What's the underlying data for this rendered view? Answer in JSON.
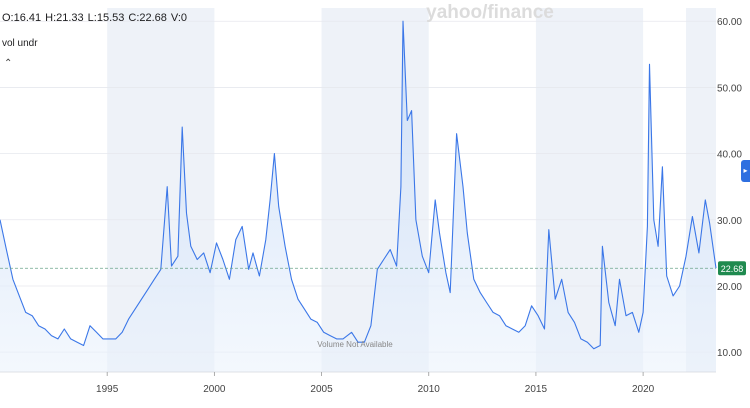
{
  "ohlc": {
    "open": "O:16.41",
    "high": "H:21.33",
    "low": "L:15.53",
    "close": "C:22.68",
    "volume": "V:0"
  },
  "study_label": "vol undr",
  "collapse_icon": "chevron-up-icon",
  "watermark": "yahoo/finance",
  "volume_note": "Volume Not Available",
  "current_price_label": "22.68",
  "colors": {
    "line": "#3b77e8",
    "area_top": "#c9dcf7",
    "grid": "#e6e8ee",
    "band": "#eef2f8",
    "tag": "#1f8a4f"
  },
  "chart_data": {
    "type": "area",
    "y_ticks": [
      "60.00",
      "50.00",
      "40.00",
      "30.00",
      "20.00",
      "10.00"
    ],
    "x_ticks": [
      "1995",
      "2000",
      "2005",
      "2010",
      "2015",
      "2020"
    ],
    "ylim": [
      7,
      62
    ],
    "xlim": [
      1990.0,
      2023.4
    ],
    "current_value": 22.68,
    "x": [
      1990.0,
      1990.3,
      1990.6,
      1990.9,
      1991.2,
      1991.5,
      1991.8,
      1992.1,
      1992.4,
      1992.7,
      1993.0,
      1993.3,
      1993.6,
      1993.9,
      1994.2,
      1994.5,
      1994.8,
      1995.1,
      1995.4,
      1995.7,
      1996.0,
      1996.3,
      1996.6,
      1996.9,
      1997.2,
      1997.5,
      1997.8,
      1998.0,
      1998.3,
      1998.5,
      1998.7,
      1998.9,
      1999.2,
      1999.5,
      1999.8,
      2000.1,
      2000.4,
      2000.7,
      2001.0,
      2001.3,
      2001.6,
      2001.8,
      2002.1,
      2002.4,
      2002.6,
      2002.8,
      2003.0,
      2003.3,
      2003.6,
      2003.9,
      2004.2,
      2004.5,
      2004.8,
      2005.1,
      2005.4,
      2005.7,
      2006.0,
      2006.4,
      2006.7,
      2007.0,
      2007.3,
      2007.6,
      2007.9,
      2008.2,
      2008.5,
      2008.7,
      2008.8,
      2009.0,
      2009.2,
      2009.4,
      2009.7,
      2010.0,
      2010.3,
      2010.5,
      2010.8,
      2011.0,
      2011.3,
      2011.6,
      2011.8,
      2012.1,
      2012.4,
      2012.7,
      2013.0,
      2013.3,
      2013.6,
      2013.9,
      2014.2,
      2014.5,
      2014.8,
      2015.1,
      2015.4,
      2015.6,
      2015.9,
      2016.2,
      2016.5,
      2016.8,
      2017.1,
      2017.4,
      2017.7,
      2018.0,
      2018.1,
      2018.4,
      2018.7,
      2018.9,
      2019.2,
      2019.5,
      2019.8,
      2020.0,
      2020.2,
      2020.3,
      2020.5,
      2020.7,
      2020.9,
      2021.1,
      2021.4,
      2021.7,
      2022.0,
      2022.3,
      2022.6,
      2022.9,
      2023.1,
      2023.4
    ],
    "y": [
      30.0,
      25.5,
      21.0,
      18.5,
      16.0,
      15.5,
      14.0,
      13.5,
      12.5,
      12.0,
      13.5,
      12.0,
      11.5,
      11.0,
      14.0,
      13.0,
      12.0,
      12.0,
      12.0,
      13.0,
      15.0,
      16.5,
      18.0,
      19.5,
      21.0,
      22.5,
      35.0,
      23.0,
      24.5,
      44.0,
      31.0,
      26.0,
      24.0,
      25.0,
      22.0,
      26.5,
      24.0,
      21.0,
      27.0,
      29.0,
      22.5,
      25.0,
      21.5,
      27.0,
      33.0,
      40.0,
      32.0,
      26.0,
      21.0,
      18.0,
      16.5,
      15.0,
      14.5,
      13.0,
      12.5,
      12.0,
      12.0,
      13.0,
      11.5,
      11.5,
      14.0,
      22.5,
      24.0,
      25.5,
      23.0,
      35.0,
      60.0,
      45.0,
      46.5,
      30.0,
      24.5,
      22.0,
      33.0,
      28.0,
      22.0,
      19.0,
      43.0,
      35.0,
      28.0,
      21.0,
      19.0,
      17.5,
      16.0,
      15.5,
      14.0,
      13.5,
      13.0,
      14.0,
      17.0,
      15.5,
      13.5,
      28.5,
      18.0,
      21.0,
      16.0,
      14.5,
      12.0,
      11.5,
      10.5,
      11.0,
      26.0,
      17.5,
      14.0,
      21.0,
      15.5,
      16.0,
      13.0,
      16.0,
      29.0,
      53.5,
      30.0,
      26.0,
      38.0,
      21.5,
      18.5,
      20.0,
      24.5,
      30.5,
      25.0,
      33.0,
      29.5,
      22.68
    ]
  }
}
